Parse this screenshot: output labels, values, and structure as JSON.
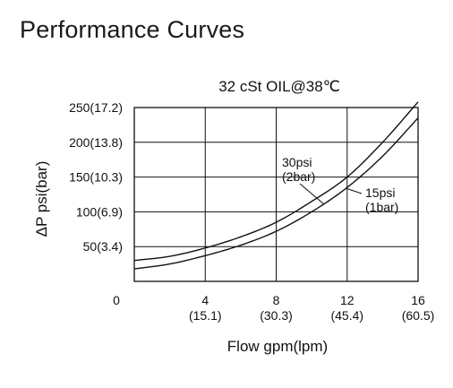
{
  "page": {
    "title": "Performance Curves"
  },
  "chart_data": {
    "type": "line",
    "title": "32 cSt OIL@38℃",
    "xlabel": "Flow gpm(lpm)",
    "ylabel": "ΔP psi(bar)",
    "xlim": [
      0,
      16
    ],
    "ylim": [
      0,
      250
    ],
    "origin_label": "0",
    "x_ticks": [
      {
        "value": 4,
        "label": "4",
        "sublabel": "(15.1)"
      },
      {
        "value": 8,
        "label": "8",
        "sublabel": "(30.3)"
      },
      {
        "value": 12,
        "label": "12",
        "sublabel": "(45.4)"
      },
      {
        "value": 16,
        "label": "16",
        "sublabel": "(60.5)"
      }
    ],
    "y_ticks": [
      {
        "value": 50,
        "label": "50(3.4)"
      },
      {
        "value": 100,
        "label": "100(6.9)"
      },
      {
        "value": 150,
        "label": "150(10.3)"
      },
      {
        "value": 200,
        "label": "200(13.8)"
      },
      {
        "value": 250,
        "label": "250(17.2)"
      }
    ],
    "grid": true,
    "series": [
      {
        "name": "30psi (2bar)",
        "label_line1": "30psi",
        "label_line2": "(2bar)",
        "x": [
          0,
          2,
          4,
          6,
          8,
          10,
          12,
          14,
          16
        ],
        "y": [
          30,
          36,
          48,
          64,
          85,
          115,
          150,
          200,
          258
        ]
      },
      {
        "name": "15psi (1bar)",
        "label_line1": "15psi",
        "label_line2": "(1bar)",
        "x": [
          0,
          2,
          4,
          6,
          8,
          10,
          12,
          14,
          16
        ],
        "y": [
          18,
          25,
          37,
          52,
          72,
          100,
          135,
          180,
          235
        ]
      }
    ]
  }
}
